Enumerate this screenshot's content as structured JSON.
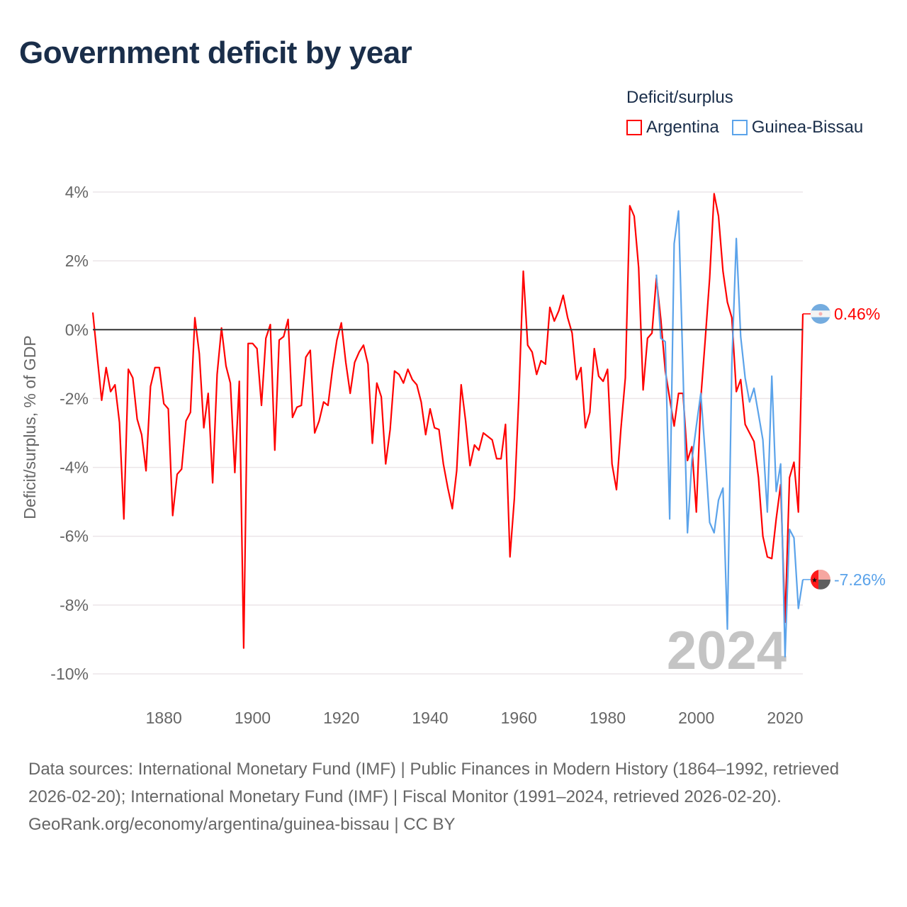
{
  "title": "Government deficit by year",
  "legend": {
    "title": "Deficit/surplus",
    "items": [
      {
        "label": "Argentina",
        "color": "#ff0000"
      },
      {
        "label": "Guinea-Bissau",
        "color": "#5ba3ea"
      }
    ]
  },
  "watermark_year": "2024",
  "footer": {
    "sources": "Data sources: International Monetary Fund (IMF) | Public Finances in Modern History (1864–1992, retrieved 2026-02-20); International Monetary Fund (IMF) | Fiscal Monitor (1991–2024, retrieved 2026-02-20).",
    "credit": "GeoRank.org/economy/argentina/guinea-bissau | CC BY"
  },
  "chart_data": {
    "type": "line",
    "title": "Government deficit by year",
    "xlabel": "",
    "ylabel": "Deficit/surplus, % of GDP",
    "xlim": [
      1864,
      2024
    ],
    "ylim": [
      -10,
      4
    ],
    "grid": true,
    "legend_placement": "top-right",
    "x_ticks": [
      1880,
      1900,
      1920,
      1940,
      1960,
      1980,
      2000,
      2020
    ],
    "x_tick_labels": [
      "1880",
      "1900",
      "1920",
      "1940",
      "1960",
      "1980",
      "2000",
      "2020"
    ],
    "y_ticks": [
      4,
      2,
      0,
      -2,
      -4,
      -6,
      -8,
      -10
    ],
    "y_tick_labels": [
      "4%",
      "2%",
      "0%",
      "-2%",
      "-4%",
      "-6%",
      "-8%",
      "-10%"
    ],
    "series": [
      {
        "name": "Argentina",
        "color": "#ff0000",
        "start_year": 1864,
        "end_label": "0.46%",
        "values": [
          0.5,
          -0.8,
          -2.05,
          -1.1,
          -1.8,
          -1.6,
          -2.7,
          -5.5,
          -1.15,
          -1.4,
          -2.6,
          -3.05,
          -4.1,
          -1.65,
          -1.1,
          -1.1,
          -2.15,
          -2.3,
          -5.4,
          -4.2,
          -4.05,
          -2.65,
          -2.4,
          0.35,
          -0.7,
          -2.85,
          -1.85,
          -4.45,
          -1.3,
          0.05,
          -1.05,
          -1.55,
          -4.15,
          -1.5,
          -9.25,
          -0.4,
          -0.4,
          -0.55,
          -2.2,
          -0.25,
          0.15,
          -3.5,
          -0.3,
          -0.2,
          0.3,
          -2.55,
          -2.25,
          -2.2,
          -0.8,
          -0.6,
          -3.0,
          -2.65,
          -2.1,
          -2.2,
          -1.15,
          -0.3,
          0.2,
          -0.95,
          -1.85,
          -0.95,
          -0.65,
          -0.45,
          -1.0,
          -3.3,
          -1.55,
          -1.95,
          -3.9,
          -2.9,
          -1.2,
          -1.3,
          -1.55,
          -1.15,
          -1.45,
          -1.6,
          -2.1,
          -3.05,
          -2.3,
          -2.85,
          -2.9,
          -3.9,
          -4.6,
          -5.2,
          -4.1,
          -1.6,
          -2.65,
          -3.95,
          -3.35,
          -3.5,
          -3.0,
          -3.1,
          -3.2,
          -3.75,
          -3.75,
          -2.75,
          -6.6,
          -4.9,
          -1.95,
          1.7,
          -0.45,
          -0.65,
          -1.3,
          -0.9,
          -1.0,
          0.65,
          0.25,
          0.55,
          1.0,
          0.35,
          -0.1,
          -1.45,
          -1.1,
          -2.85,
          -2.4,
          -0.55,
          -1.35,
          -1.5,
          -1.15,
          -3.9,
          -4.65,
          -2.9,
          -1.4,
          3.6,
          3.3,
          1.8,
          -1.75,
          -0.25,
          -0.1,
          1.5,
          0.3,
          -1.2,
          -2.0,
          -2.8,
          -1.85,
          -1.85,
          -3.8,
          -3.4,
          -5.3,
          -2.0,
          -0.3,
          1.5,
          3.95,
          3.3,
          1.7,
          0.8,
          0.35,
          -1.8,
          -1.45,
          -2.75,
          -3.0,
          -3.25,
          -4.3,
          -6.0,
          -6.6,
          -6.65,
          -5.5,
          -4.5,
          -8.5,
          -4.3,
          -3.85,
          -5.3,
          0.46
        ]
      },
      {
        "name": "Guinea-Bissau",
        "color": "#5ba3ea",
        "start_year": 1991,
        "end_label": "-7.26%",
        "values": [
          1.6,
          -0.25,
          -0.35,
          -5.5,
          2.5,
          3.45,
          -1.2,
          -5.9,
          -3.8,
          -2.8,
          -1.85,
          -3.6,
          -5.6,
          -5.9,
          -4.95,
          -4.6,
          -8.7,
          -1.0,
          2.65,
          -0.2,
          -1.4,
          -2.1,
          -1.7,
          -2.45,
          -3.2,
          -5.3,
          -1.35,
          -4.7,
          -3.9,
          -9.5,
          -5.8,
          -6.05,
          -8.1,
          -7.26
        ]
      }
    ]
  }
}
